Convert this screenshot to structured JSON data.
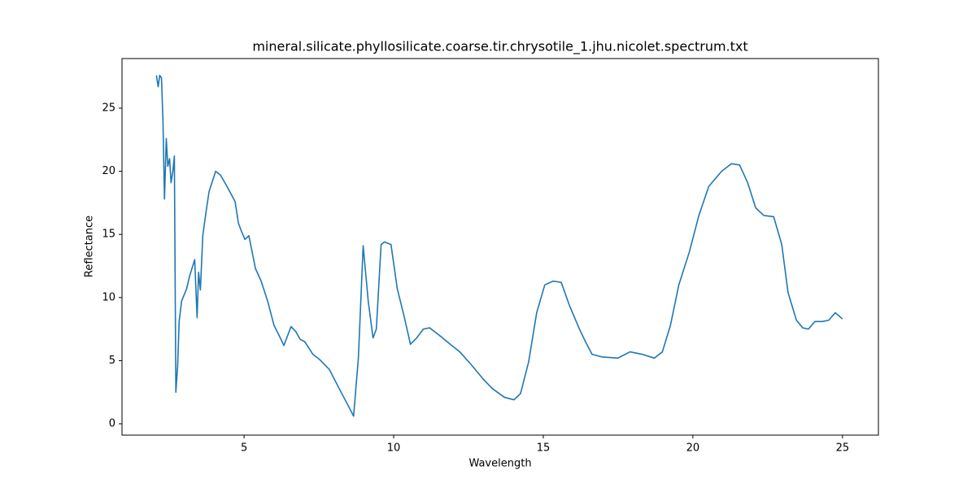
{
  "chart_data": {
    "type": "line",
    "title": "mineral.silicate.phyllosilicate.coarse.tir.chrysotile_1.jhu.nicolet.spectrum.txt",
    "x_label": "Wavelength",
    "y_label": "Reflectance",
    "xlim": [
      0.92,
      26.2
    ],
    "ylim": [
      -0.9,
      28.93
    ],
    "xticks": [
      5,
      10,
      15,
      20,
      25
    ],
    "yticks": [
      0,
      5,
      10,
      15,
      20,
      25
    ],
    "x": [
      2.07,
      2.13,
      2.18,
      2.24,
      2.29,
      2.34,
      2.4,
      2.45,
      2.51,
      2.56,
      2.62,
      2.67,
      2.72,
      2.78,
      2.83,
      2.91,
      3.08,
      3.18,
      3.35,
      3.43,
      3.48,
      3.54,
      3.62,
      3.73,
      3.83,
      4.05,
      4.21,
      4.43,
      4.7,
      4.81,
      4.92,
      5.03,
      5.16,
      5.38,
      5.57,
      5.79,
      6.0,
      6.17,
      6.33,
      6.57,
      6.73,
      6.87,
      7.03,
      7.3,
      7.52,
      7.85,
      8.22,
      8.5,
      8.66,
      8.82,
      8.98,
      9.15,
      9.31,
      9.42,
      9.58,
      9.69,
      9.91,
      10.12,
      10.34,
      10.56,
      10.77,
      10.99,
      11.2,
      11.53,
      11.94,
      12.21,
      12.62,
      12.97,
      13.29,
      13.7,
      14.02,
      14.24,
      14.51,
      14.78,
      15.05,
      15.33,
      15.6,
      15.87,
      16.19,
      16.41,
      16.63,
      16.95,
      17.49,
      17.9,
      18.31,
      18.71,
      18.98,
      19.25,
      19.53,
      19.88,
      20.2,
      20.53,
      20.96,
      21.29,
      21.56,
      21.83,
      22.1,
      22.37,
      22.7,
      22.97,
      23.18,
      23.46,
      23.67,
      23.86,
      24.08,
      24.32,
      24.54,
      24.76,
      25.0
    ],
    "series": [
      {
        "name": "chrysotile_1",
        "color": "#1f77b4",
        "values": [
          27.6,
          26.7,
          27.6,
          27.4,
          23.9,
          17.8,
          22.6,
          20.4,
          21.0,
          19.1,
          20.0,
          21.2,
          2.5,
          4.6,
          8.1,
          9.7,
          10.7,
          11.7,
          13.0,
          8.4,
          12.0,
          10.6,
          14.9,
          16.8,
          18.4,
          20.0,
          19.7,
          18.8,
          17.6,
          15.9,
          15.2,
          14.6,
          14.9,
          12.3,
          11.3,
          9.7,
          7.8,
          7.0,
          6.2,
          7.7,
          7.3,
          6.7,
          6.5,
          5.5,
          5.1,
          4.3,
          2.6,
          1.35,
          0.6,
          5.2,
          14.1,
          9.7,
          6.8,
          7.5,
          14.2,
          14.4,
          14.2,
          10.7,
          8.6,
          6.3,
          6.8,
          7.5,
          7.6,
          7.0,
          6.2,
          5.7,
          4.6,
          3.6,
          2.8,
          2.1,
          1.9,
          2.4,
          4.9,
          8.8,
          11.0,
          11.3,
          11.2,
          9.4,
          7.6,
          6.5,
          5.5,
          5.3,
          5.2,
          5.7,
          5.5,
          5.2,
          5.7,
          7.8,
          11.0,
          13.6,
          16.5,
          18.8,
          20.0,
          20.6,
          20.5,
          19.1,
          17.1,
          16.5,
          16.4,
          14.2,
          10.4,
          8.2,
          7.6,
          7.5,
          8.1,
          8.1,
          8.2,
          8.8,
          8.3
        ]
      }
    ]
  }
}
